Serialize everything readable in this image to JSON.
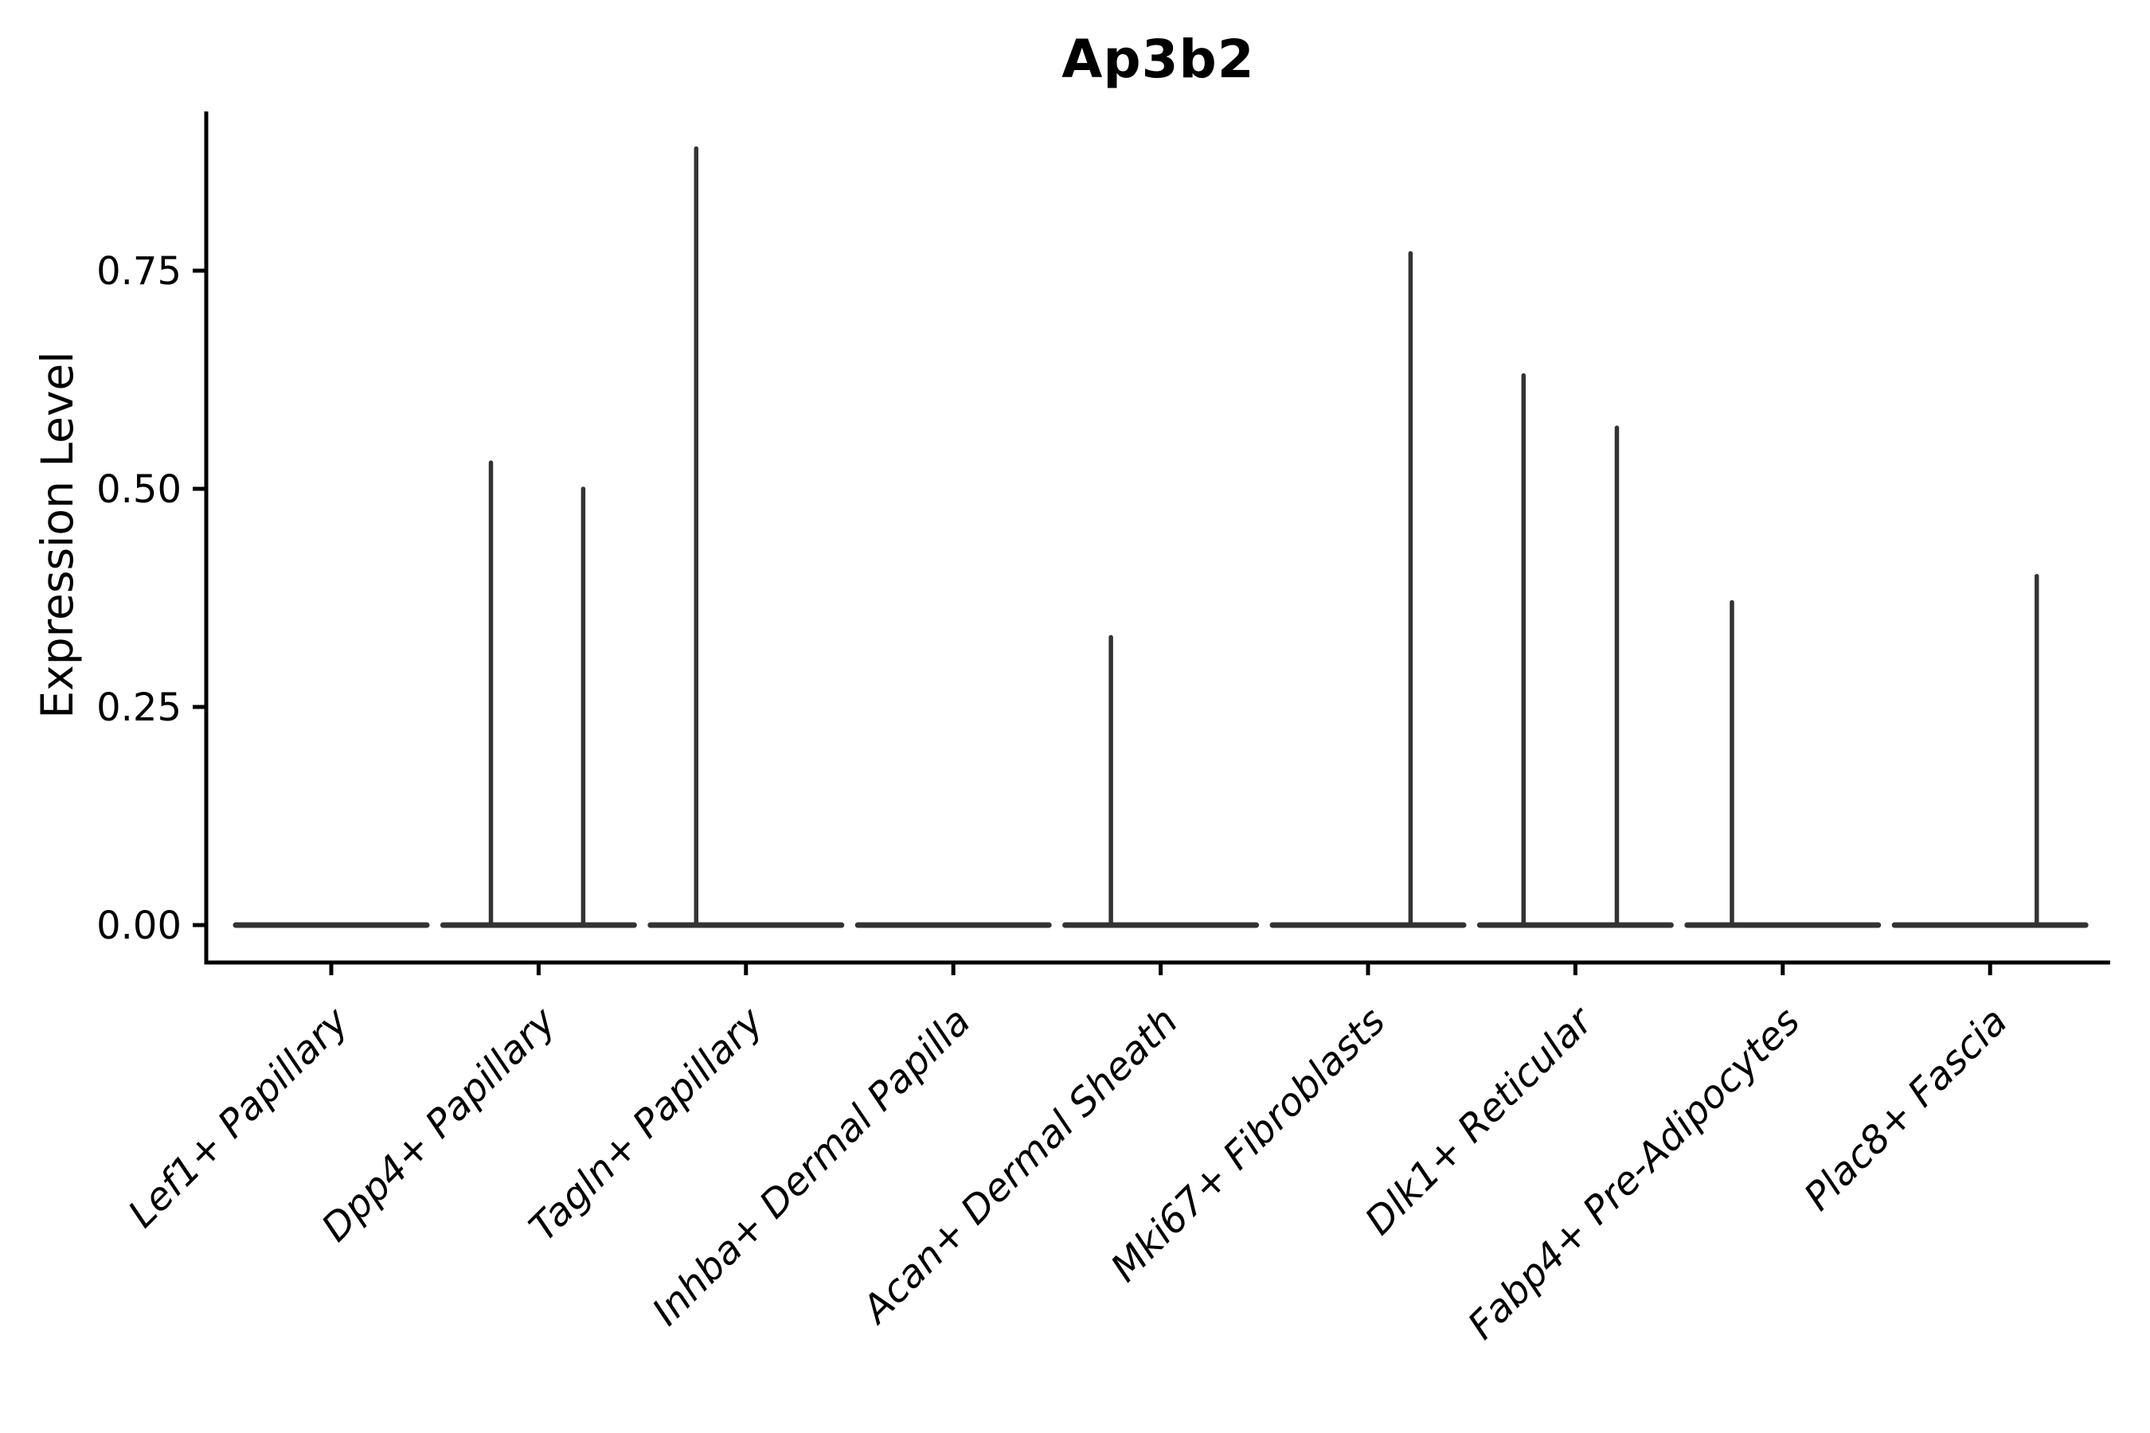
{
  "chart_data": {
    "type": "violin",
    "title": "Ap3b2",
    "ylabel": "Expression Level",
    "xlabel": "",
    "grid": false,
    "legend": "none",
    "background": "#ffffff",
    "yticks": [
      "0.00",
      "0.25",
      "0.50",
      "0.75"
    ],
    "ytick_values": [
      0.0,
      0.25,
      0.5,
      0.75
    ],
    "ylim": [
      -0.043,
      0.933
    ],
    "categories": [
      "Lef1+ Papillary",
      "Dpp4+ Papillary",
      "Tagln+ Papillary",
      "Inhba+ Dermal Papilla",
      "Acan+ Dermal Sheath",
      "Mki67+ Fibroblasts",
      "Dlk1+ Reticular",
      "Fabp4+ Pre-Adipocytes",
      "Plac8+ Fascia"
    ],
    "violins": [
      {
        "category": "Lef1+ Papillary",
        "baseline_value": 0,
        "spikes": []
      },
      {
        "category": "Dpp4+ Papillary",
        "baseline_value": 0,
        "spikes": [
          {
            "x_offset": -0.23,
            "value": 0.53
          },
          {
            "x_offset": 0.215,
            "value": 0.5
          }
        ]
      },
      {
        "category": "Tagln+ Papillary",
        "baseline_value": 0,
        "spikes": [
          {
            "x_offset": -0.24,
            "value": 0.89
          }
        ]
      },
      {
        "category": "Inhba+ Dermal Papilla",
        "baseline_value": 0,
        "spikes": []
      },
      {
        "category": "Acan+ Dermal Sheath",
        "baseline_value": 0,
        "spikes": [
          {
            "x_offset": -0.24,
            "value": 0.33
          }
        ]
      },
      {
        "category": "Mki67+ Fibroblasts",
        "baseline_value": 0,
        "spikes": [
          {
            "x_offset": 0.205,
            "value": 0.77
          }
        ]
      },
      {
        "category": "Dlk1+ Reticular",
        "baseline_value": 0,
        "spikes": [
          {
            "x_offset": -0.25,
            "value": 0.63
          },
          {
            "x_offset": 0.2,
            "value": 0.57
          }
        ]
      },
      {
        "category": "Fabp4+ Pre-Adipocytes",
        "baseline_value": 0,
        "spikes": [
          {
            "x_offset": -0.245,
            "value": 0.37
          }
        ]
      },
      {
        "category": "Plac8+ Fascia",
        "baseline_value": 0,
        "spikes": [
          {
            "x_offset": 0.225,
            "value": 0.4
          }
        ]
      }
    ],
    "colors": {
      "violin_line": "#333333",
      "spine": "#000000",
      "tick": "#000000",
      "text": "#000000"
    }
  }
}
